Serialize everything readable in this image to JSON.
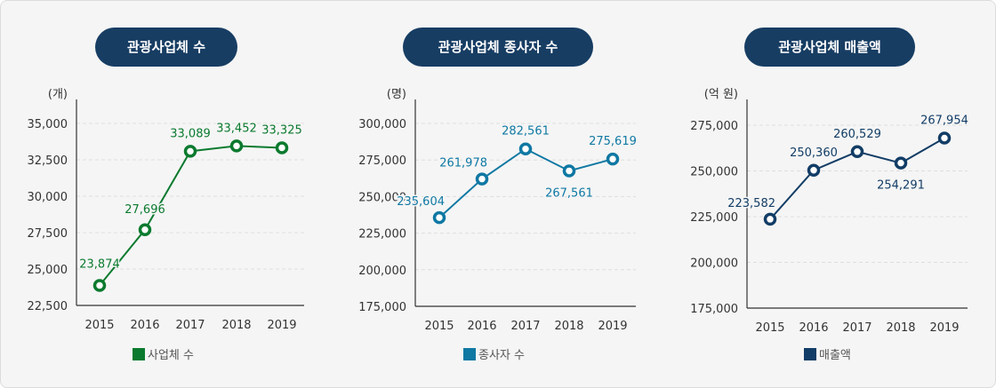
{
  "chart_data": [
    {
      "type": "line",
      "title": "관광사업체 수",
      "unit": "(개)",
      "categories": [
        "2015",
        "2016",
        "2017",
        "2018",
        "2019"
      ],
      "series": [
        {
          "name": "사업체 수",
          "values": [
            23874,
            27696,
            33089,
            33452,
            33325
          ]
        }
      ],
      "data_labels": [
        "23,874",
        "27,696",
        "33,089",
        "33,452",
        "33,325"
      ],
      "y_ticks": [
        "22,500",
        "25,000",
        "27,500",
        "30,000",
        "32,500",
        "35,000"
      ],
      "ylim": [
        22500,
        35000
      ],
      "grid": true,
      "legend": "bottom",
      "color": "#0b7a2e"
    },
    {
      "type": "line",
      "title": "관광사업체 종사자 수",
      "unit": "(명)",
      "categories": [
        "2015",
        "2016",
        "2017",
        "2018",
        "2019"
      ],
      "series": [
        {
          "name": "종사자 수",
          "values": [
            235604,
            261978,
            282561,
            267561,
            275619
          ]
        }
      ],
      "data_labels": [
        "235,604",
        "261,978",
        "282,561",
        "267,561",
        "275,619"
      ],
      "y_ticks": [
        "175,000",
        "200,000",
        "225,000",
        "250,000",
        "275,000",
        "300,000"
      ],
      "ylim": [
        175000,
        300000
      ],
      "grid": true,
      "legend": "bottom",
      "color": "#0f78a3"
    },
    {
      "type": "line",
      "title": "관광사업체 매출액",
      "unit": "(억 원)",
      "categories": [
        "2015",
        "2016",
        "2017",
        "2018",
        "2019"
      ],
      "series": [
        {
          "name": "매출액",
          "values": [
            223582,
            250360,
            260529,
            254291,
            267954
          ]
        }
      ],
      "data_labels": [
        "223,582",
        "250,360",
        "260,529",
        "254,291",
        "267,954"
      ],
      "y_ticks": [
        "175,000",
        "200,000",
        "225,000",
        "250,000",
        "275,000"
      ],
      "ylim": [
        175000,
        275000
      ],
      "grid": true,
      "legend": "bottom",
      "color": "#123d66"
    }
  ]
}
